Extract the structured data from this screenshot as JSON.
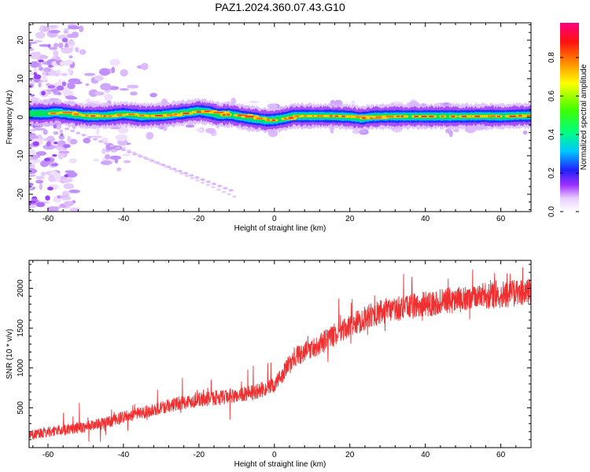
{
  "title": "PAZ1.2024.360.07.43.G10",
  "chart_data": [
    {
      "type": "heatmap",
      "xlabel": "Height of straight line (km)",
      "ylabel": "Frequency (Hz)",
      "xlim": [
        -65,
        68
      ],
      "ylim": [
        -24.5,
        24.5
      ],
      "xticks": [
        -60,
        -40,
        -20,
        0,
        20,
        40,
        60
      ],
      "yticks": [
        -20,
        -10,
        0,
        10,
        20
      ],
      "ridge": {
        "x": [
          -64,
          -60,
          -58,
          -55,
          -50,
          -45,
          -40,
          -35,
          -30,
          -25,
          -20,
          -17,
          -15,
          -12,
          -8,
          -5,
          -2,
          0,
          3,
          5,
          10,
          15,
          20,
          23,
          26,
          30,
          35,
          40,
          45,
          50,
          55,
          60,
          65,
          68
        ],
        "frequency": [
          1.0,
          1.0,
          1.3,
          0.9,
          0.3,
          0.3,
          0.8,
          0.3,
          0.5,
          1.0,
          1.6,
          1.2,
          0.6,
          0.7,
          0.0,
          -0.4,
          -0.8,
          -0.7,
          -0.2,
          0.3,
          0.3,
          0.3,
          0.1,
          -0.3,
          0.1,
          0.2,
          0.2,
          0.2,
          0.2,
          0.2,
          0.3,
          0.2,
          0.4,
          0.4
        ]
      },
      "colorbar": {
        "label": "Normalized spectral amplitude",
        "ticks": [
          "0.0",
          "0.2",
          "0.4",
          "0.6",
          "0.8"
        ],
        "range": [
          0,
          0.98
        ]
      }
    },
    {
      "type": "line",
      "xlabel": "Height of straight line (km)",
      "ylabel": "SNR (10 * v/v)",
      "xlim": [
        -65,
        68
      ],
      "ylim": [
        0,
        2350
      ],
      "xticks": [
        -60,
        -40,
        -20,
        0,
        20,
        40,
        60
      ],
      "yticks": [
        500,
        1000,
        1500,
        2000
      ],
      "color": "#f03030",
      "trend": {
        "x": [
          -65,
          -60,
          -50,
          -45,
          -40,
          -30,
          -25,
          -20,
          -10,
          -5,
          0,
          3,
          5,
          10,
          15,
          20,
          25,
          30,
          35,
          40,
          45,
          50,
          55,
          60,
          65,
          68
        ],
        "snr": [
          150,
          200,
          260,
          310,
          380,
          500,
          560,
          600,
          650,
          700,
          780,
          980,
          1130,
          1250,
          1380,
          1520,
          1650,
          1720,
          1760,
          1800,
          1840,
          1860,
          1900,
          1920,
          1950,
          1960
        ]
      }
    }
  ]
}
